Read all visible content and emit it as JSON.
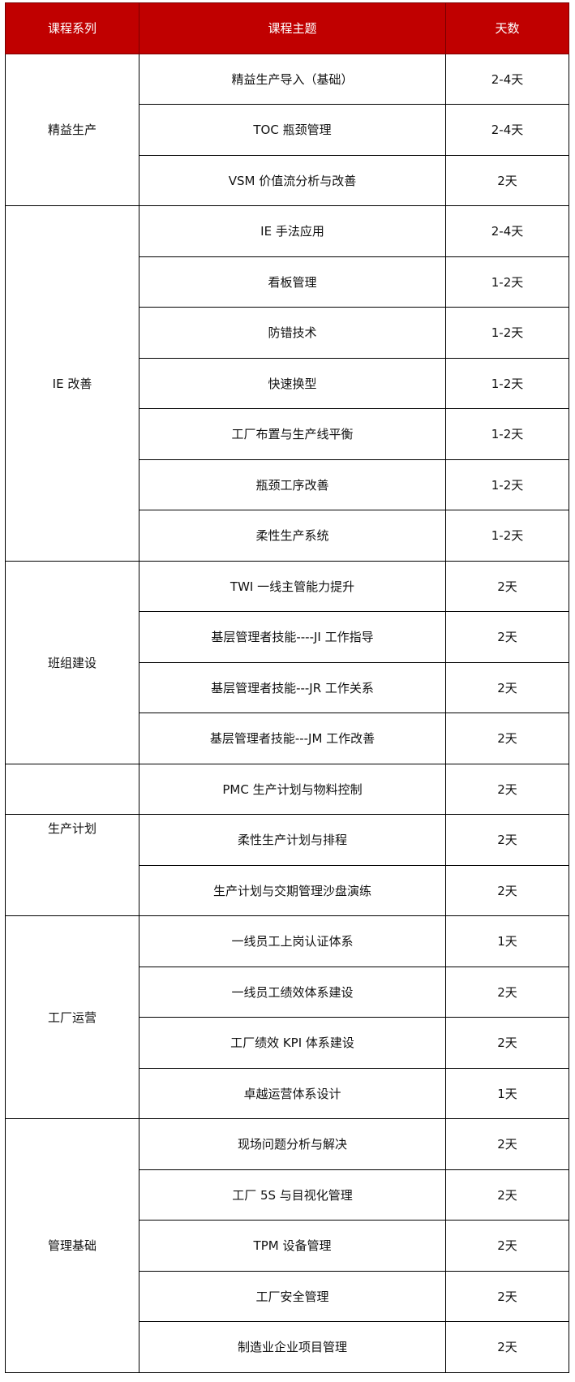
{
  "table": {
    "header": [
      "课程系列",
      "课程主题",
      "天数"
    ],
    "groups": [
      {
        "series": "精益生产",
        "courses": [
          {
            "topic": "精益生产导入（基础）",
            "days": "2-4天"
          },
          {
            "topic": "TOC 瓶颈管理",
            "days": "2-4天"
          },
          {
            "topic": "VSM 价值流分析与改善",
            "days": "2天"
          }
        ]
      },
      {
        "series": "IE 改善",
        "courses": [
          {
            "topic": "IE 手法应用",
            "days": "2-4天"
          },
          {
            "topic": "看板管理",
            "days": "1-2天"
          },
          {
            "topic": "防错技术",
            "days": "1-2天"
          },
          {
            "topic": "快速换型",
            "days": "1-2天"
          },
          {
            "topic": "工厂布置与生产线平衡",
            "days": "1-2天"
          },
          {
            "topic": "瓶颈工序改善",
            "days": "1-2天"
          },
          {
            "topic": "柔性生产系统",
            "days": "1-2天"
          }
        ]
      },
      {
        "series": "班组建设",
        "courses": [
          {
            "topic": "TWI 一线主管能力提升",
            "days": "2天"
          },
          {
            "topic": "基层管理者技能----JI 工作指导",
            "days": "2天"
          },
          {
            "topic": "基层管理者技能---JR 工作关系",
            "days": "2天"
          },
          {
            "topic": "基层管理者技能---JM 工作改善",
            "days": "2天"
          }
        ]
      },
      {
        "series": "生产计划",
        "courses": [
          {
            "topic": "PMC 生产计划与物料控制",
            "days": "2天"
          },
          {
            "topic": "柔性生产计划与排程",
            "days": "2天"
          },
          {
            "topic": "生产计划与交期管理沙盘演练",
            "days": "2天"
          }
        ]
      },
      {
        "series": "工厂运营",
        "courses": [
          {
            "topic": "一线员工上岗认证体系",
            "days": "1天"
          },
          {
            "topic": "一线员工绩效体系建设",
            "days": "2天"
          },
          {
            "topic": "工厂绩效 KPI 体系建设",
            "days": "2天"
          },
          {
            "topic": "卓越运营体系设计",
            "days": "1天"
          }
        ]
      },
      {
        "series": "管理基础",
        "courses": [
          {
            "topic": "现场问题分析与解决",
            "days": "2天"
          },
          {
            "topic": "工厂 5S 与目视化管理",
            "days": "2天"
          },
          {
            "topic": "TPM 设备管理",
            "days": "2天"
          },
          {
            "topic": "工厂安全管理",
            "days": "2天"
          },
          {
            "topic": "制造业企业项目管理",
            "days": "2天"
          }
        ]
      }
    ]
  }
}
